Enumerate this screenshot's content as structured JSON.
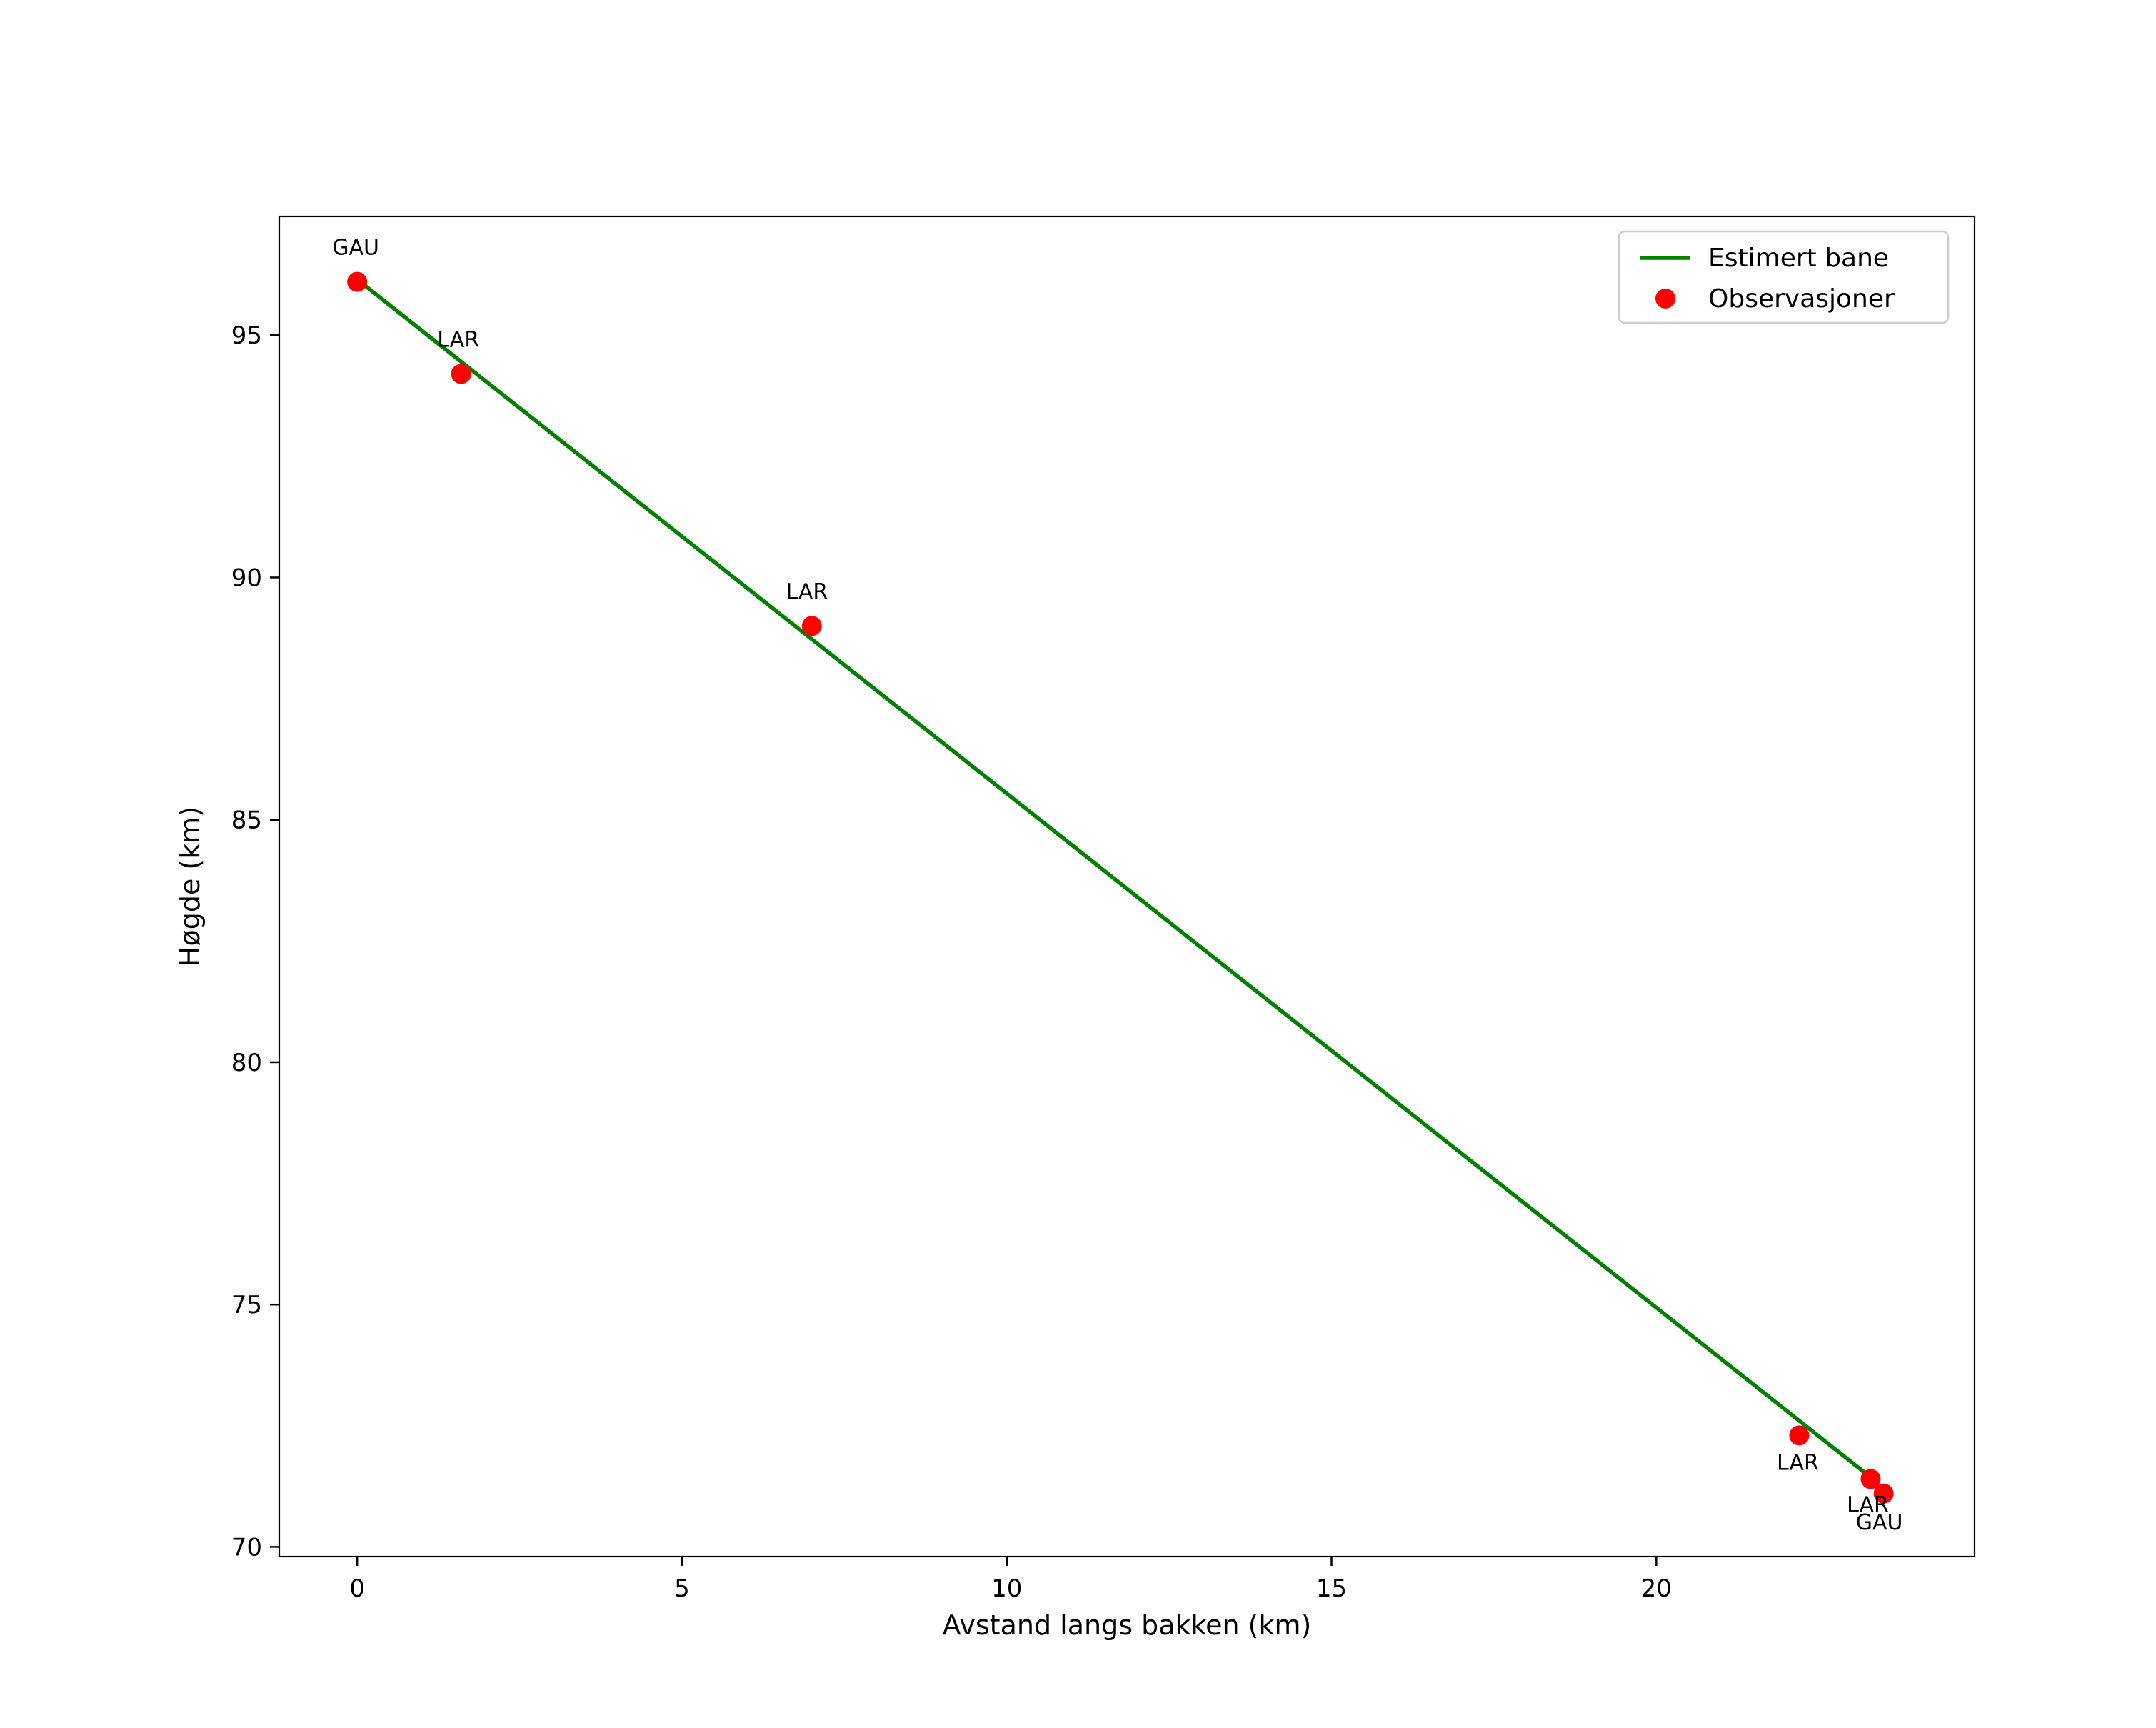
{
  "chart_data": {
    "type": "scatter",
    "title": "",
    "xlabel": "Avstand langs bakken (km)",
    "ylabel": "Høgde (km)",
    "xlim": [
      -1.2,
      24.9
    ],
    "ylim": [
      69.8,
      97.45
    ],
    "xticks": [
      0,
      5,
      10,
      15,
      20
    ],
    "yticks": [
      70,
      75,
      80,
      85,
      90,
      95
    ],
    "grid": false,
    "colors": {
      "line": "#008000",
      "marker": "#ff0000",
      "spine": "#000000",
      "legend_border": "#cccccc"
    },
    "legend": {
      "position": "upper right",
      "entries": [
        {
          "label": "Estimert bane",
          "type": "line",
          "color": "#008000"
        },
        {
          "label": "Observasjoner",
          "type": "marker",
          "color": "#ff0000"
        }
      ]
    },
    "series": [
      {
        "name": "Estimert bane",
        "type": "line",
        "color": "#008000",
        "points": [
          [
            0.0,
            96.15
          ],
          [
            23.4,
            71.33
          ]
        ]
      },
      {
        "name": "Observasjoner",
        "type": "scatter",
        "color": "#ff0000",
        "points": [
          {
            "x": 0.0,
            "y": 96.1,
            "label": "GAU",
            "label_dx": -2,
            "label_dy": -38
          },
          {
            "x": 1.6,
            "y": 94.2,
            "label": "LAR",
            "label_dx": -4,
            "label_dy": -38
          },
          {
            "x": 7.0,
            "y": 89.0,
            "label": "LAR",
            "label_dx": -7,
            "label_dy": -38
          },
          {
            "x": 22.2,
            "y": 72.3,
            "label": "LAR",
            "label_dx": -2,
            "label_dy": 48
          },
          {
            "x": 23.3,
            "y": 71.4,
            "label": "LAR",
            "label_dx": -4,
            "label_dy": 46
          },
          {
            "x": 23.5,
            "y": 71.1,
            "label": "GAU",
            "label_dx": -6,
            "label_dy": 50
          }
        ]
      }
    ]
  }
}
